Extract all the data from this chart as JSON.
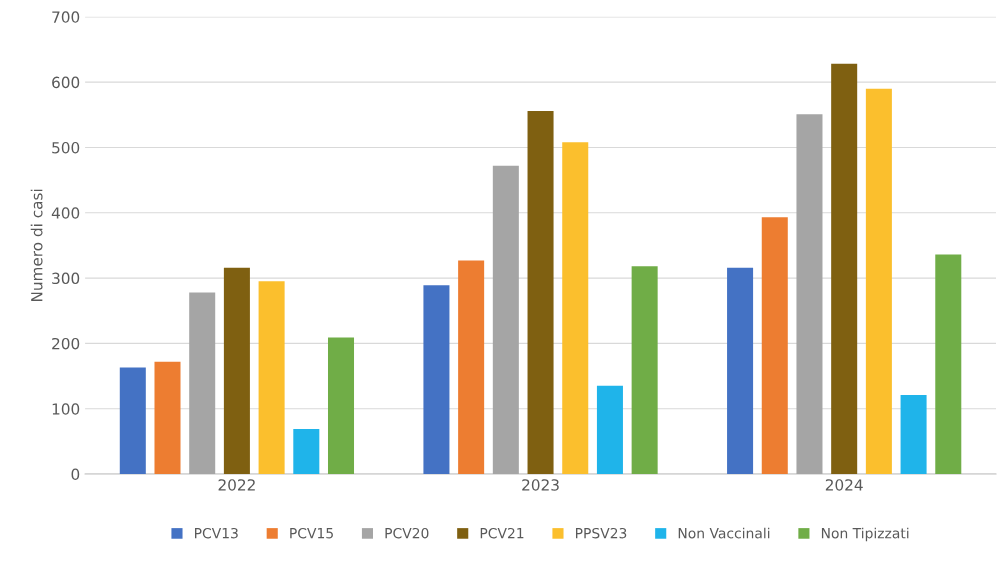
{
  "chart_data": {
    "type": "bar",
    "ylabel": "Numero di casi",
    "categories": [
      "2022",
      "2023",
      "2024"
    ],
    "series": [
      {
        "name": "PCV13",
        "color": "#4472c4",
        "values": [
          163,
          289,
          316
        ]
      },
      {
        "name": "PCV15",
        "color": "#ed7d31",
        "values": [
          172,
          327,
          393
        ]
      },
      {
        "name": "PCV20",
        "color": "#a5a5a5",
        "values": [
          278,
          472,
          551
        ]
      },
      {
        "name": "PCV21",
        "color": "#7f6011",
        "values": [
          316,
          556,
          628
        ]
      },
      {
        "name": "PPSV23",
        "color": "#fbbf2d",
        "values": [
          295,
          508,
          590
        ]
      },
      {
        "name": "Non Vaccinali",
        "color": "#1fb4ea",
        "values": [
          69,
          135,
          121
        ]
      },
      {
        "name": "Non Tipizzati",
        "color": "#70ad47",
        "values": [
          209,
          318,
          336
        ]
      }
    ],
    "ylim": [
      0,
      700
    ],
    "yticks": [
      0,
      100,
      200,
      300,
      400,
      500,
      600,
      700
    ],
    "grid": "y",
    "legend": "bottom"
  }
}
